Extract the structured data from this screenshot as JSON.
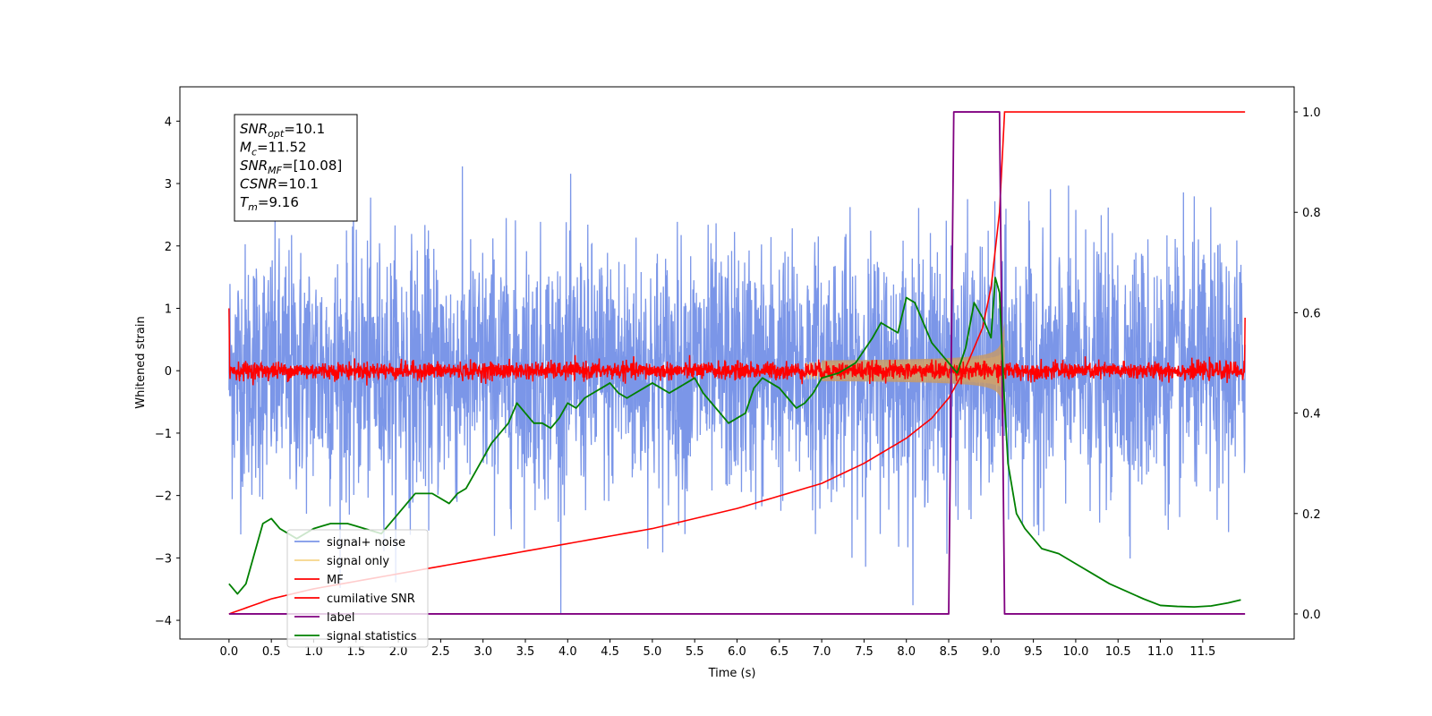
{
  "chart_data": {
    "type": "line",
    "xlabel": "Time (s)",
    "ylabel": "Whitened strain",
    "xlim": [
      -0.58,
      12.58
    ],
    "ylim": [
      -4.3,
      4.55
    ],
    "y2lim": [
      -0.05,
      1.05
    ],
    "x_ticks": [
      "0.0",
      "0.5",
      "1.0",
      "1.5",
      "2.0",
      "2.5",
      "3.0",
      "3.5",
      "4.0",
      "4.5",
      "5.0",
      "5.5",
      "6.0",
      "6.5",
      "7.0",
      "7.5",
      "8.0",
      "8.5",
      "9.0",
      "9.5",
      "10.0",
      "10.5",
      "11.0",
      "11.5"
    ],
    "y_ticks": [
      "4",
      "3",
      "2",
      "1",
      "0",
      "−1",
      "−2",
      "−3",
      "−4"
    ],
    "y2_ticks": [
      "1.0",
      "0.8",
      "0.6",
      "0.4",
      "0.2",
      "0.0"
    ],
    "annotation": {
      "lines": [
        {
          "var": "SNR",
          "sub": "opt",
          "value": "=10.1"
        },
        {
          "var": "M",
          "sub": "c",
          "value": "=11.52"
        },
        {
          "var": "SNR",
          "sub": "MF",
          "value": "=[10.08]"
        },
        {
          "var": "CSNR",
          "sub": "",
          "value": "=10.1"
        },
        {
          "var": "T",
          "sub": "m",
          "value": "=9.16"
        }
      ]
    },
    "legend": {
      "location": "lower-left",
      "entries": [
        {
          "label": "signal+ noise",
          "color": "#7b96e8"
        },
        {
          "label": "signal only",
          "color": "#f6d58a"
        },
        {
          "label": "MF",
          "color": "#ff0000"
        },
        {
          "label": "cumilative SNR",
          "color": "#ff0000"
        },
        {
          "label": "label",
          "color": "#800080"
        },
        {
          "label": "signal statistics",
          "color": "#008000"
        }
      ]
    },
    "series": [
      {
        "name": "signal+ noise",
        "axis": "left",
        "color": "#7b96e8",
        "description_values": {
          "x_range": [
            0.0,
            12.0
          ],
          "typical_amplitude": 1.0,
          "peak_min": -3.9,
          "peak_max": 4.2
        }
      },
      {
        "name": "signal only",
        "axis": "left",
        "color": "#f6d58a",
        "chirp": {
          "start": 6.8,
          "merger": 9.16,
          "peak_amplitude": 0.9
        }
      },
      {
        "name": "MF",
        "axis": "left",
        "color": "#ff0000",
        "description_values": {
          "x_range": [
            0.0,
            12.0
          ],
          "typical_amplitude": 0.12,
          "start_value": 1.0,
          "end_value": 0.85
        }
      },
      {
        "name": "cumilative SNR",
        "axis": "right",
        "color": "#ff0000",
        "x": [
          0.0,
          0.5,
          1.0,
          2.0,
          3.0,
          4.0,
          5.0,
          6.0,
          7.0,
          7.5,
          8.0,
          8.3,
          8.5,
          8.7,
          8.9,
          9.0,
          9.1,
          9.16,
          12.0
        ],
        "y": [
          0.0,
          0.03,
          0.05,
          0.08,
          0.11,
          0.14,
          0.17,
          0.21,
          0.26,
          0.3,
          0.35,
          0.39,
          0.43,
          0.49,
          0.57,
          0.65,
          0.8,
          1.0,
          1.0
        ]
      },
      {
        "name": "label",
        "axis": "right",
        "color": "#800080",
        "x": [
          0.0,
          8.5,
          8.56,
          9.1,
          9.16,
          12.0
        ],
        "y": [
          0.0,
          0.0,
          1.0,
          1.0,
          0.0,
          0.0
        ]
      },
      {
        "name": "signal statistics",
        "axis": "right",
        "color": "#008000",
        "x": [
          0.0,
          0.1,
          0.2,
          0.3,
          0.4,
          0.5,
          0.6,
          0.7,
          0.8,
          0.9,
          1.0,
          1.1,
          1.2,
          1.3,
          1.4,
          1.5,
          1.6,
          1.8,
          2.0,
          2.2,
          2.4,
          2.6,
          2.7,
          2.8,
          2.9,
          3.0,
          3.1,
          3.2,
          3.3,
          3.4,
          3.5,
          3.6,
          3.7,
          3.8,
          3.9,
          4.0,
          4.1,
          4.2,
          4.3,
          4.4,
          4.5,
          4.6,
          4.7,
          4.8,
          4.9,
          5.0,
          5.1,
          5.2,
          5.3,
          5.4,
          5.5,
          5.6,
          5.7,
          5.8,
          5.9,
          6.0,
          6.1,
          6.2,
          6.3,
          6.4,
          6.5,
          6.6,
          6.7,
          6.8,
          6.9,
          7.0,
          7.2,
          7.4,
          7.6,
          7.7,
          7.8,
          7.9,
          8.0,
          8.1,
          8.2,
          8.3,
          8.4,
          8.5,
          8.6,
          8.7,
          8.8,
          8.9,
          9.0,
          9.05,
          9.1,
          9.15,
          9.2,
          9.3,
          9.4,
          9.6,
          9.8,
          10.0,
          10.2,
          10.4,
          10.6,
          10.8,
          11.0,
          11.2,
          11.4,
          11.6,
          11.8,
          11.95
        ],
        "y": [
          0.06,
          0.04,
          0.06,
          0.12,
          0.18,
          0.19,
          0.17,
          0.16,
          0.15,
          0.16,
          0.17,
          0.175,
          0.18,
          0.18,
          0.18,
          0.175,
          0.17,
          0.16,
          0.2,
          0.24,
          0.24,
          0.22,
          0.24,
          0.25,
          0.28,
          0.31,
          0.34,
          0.36,
          0.38,
          0.42,
          0.4,
          0.38,
          0.38,
          0.37,
          0.39,
          0.42,
          0.41,
          0.43,
          0.44,
          0.45,
          0.46,
          0.44,
          0.43,
          0.44,
          0.45,
          0.46,
          0.45,
          0.44,
          0.45,
          0.46,
          0.47,
          0.44,
          0.42,
          0.4,
          0.38,
          0.39,
          0.4,
          0.45,
          0.47,
          0.46,
          0.45,
          0.43,
          0.41,
          0.42,
          0.44,
          0.47,
          0.48,
          0.5,
          0.55,
          0.58,
          0.57,
          0.56,
          0.63,
          0.62,
          0.58,
          0.54,
          0.52,
          0.5,
          0.48,
          0.53,
          0.62,
          0.59,
          0.55,
          0.67,
          0.64,
          0.45,
          0.3,
          0.2,
          0.17,
          0.13,
          0.12,
          0.1,
          0.08,
          0.06,
          0.045,
          0.03,
          0.017,
          0.015,
          0.014,
          0.016,
          0.022,
          0.028
        ]
      }
    ]
  }
}
